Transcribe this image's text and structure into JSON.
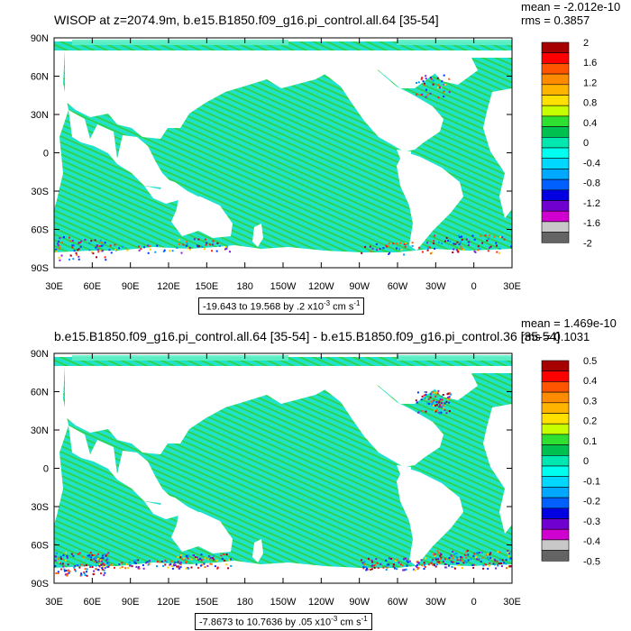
{
  "colors": {
    "ocean": "#1fe8b4",
    "ocean_alt": "#5ff0c8",
    "stripe_green": "#33cc44",
    "stripe_cyan": "#22d8e8",
    "land": "#ffffff",
    "frame": "#000000",
    "noise": [
      "#0033ff",
      "#a0002a",
      "#ffcc00",
      "#7d1fd6",
      "#ff6600",
      "#0099ff",
      "#ff1a1a"
    ]
  },
  "lat_labels": [
    "90N",
    "60N",
    "30N",
    "0",
    "30S",
    "60S",
    "90S"
  ],
  "lon_labels": [
    "30E",
    "60E",
    "90E",
    "120E",
    "150E",
    "180",
    "150W",
    "120W",
    "90W",
    "60W",
    "30W",
    "0",
    "30E"
  ],
  "panel1": {
    "title": "WISOP at z=2074.9m, b.e15.B1850.f09_g16.pi_control.all.64 [35-54]",
    "mean": "mean = -2.012e-10",
    "rms": "rms = 0.3857",
    "range_text": "-19.643 to 19.568 by .2 x10",
    "range_exp": "-3",
    "range_unit": " cm s",
    "range_unit_exp": "-1",
    "colorbar_labels": [
      "2",
      "1.6",
      "1.2",
      "0.8",
      "0.4",
      "0",
      "-0.4",
      "-0.8",
      "-1.2",
      "-1.6",
      "-2"
    ]
  },
  "panel2": {
    "title": "b.e15.B1850.f09_g16.pi_control.all.64 [35-54] - b.e15.B1850.f09_g16.pi_control.36 [35-54]",
    "mean": "mean = 1.469e-10",
    "rms": "rms = 0.1031",
    "range_text": "-7.8673 to 10.7636 by .05 x10",
    "range_exp": "-3",
    "range_unit": " cm s",
    "range_unit_exp": "-1",
    "colorbar_labels": [
      "0.5",
      "0.4",
      "0.3",
      "0.2",
      "0.1",
      "0",
      "-0.1",
      "-0.2",
      "-0.3",
      "-0.4",
      "-0.5"
    ]
  },
  "colorbar_colors": [
    "#a60000",
    "#ff0000",
    "#ff5500",
    "#ff8c00",
    "#ffb400",
    "#ffe000",
    "#c8ff00",
    "#30e030",
    "#00c050",
    "#00e8b0",
    "#00ffee",
    "#00d8ff",
    "#00a8ff",
    "#0060ff",
    "#0000e0",
    "#7000d0",
    "#d000d0",
    "#c8c8c8",
    "#646464"
  ]
}
